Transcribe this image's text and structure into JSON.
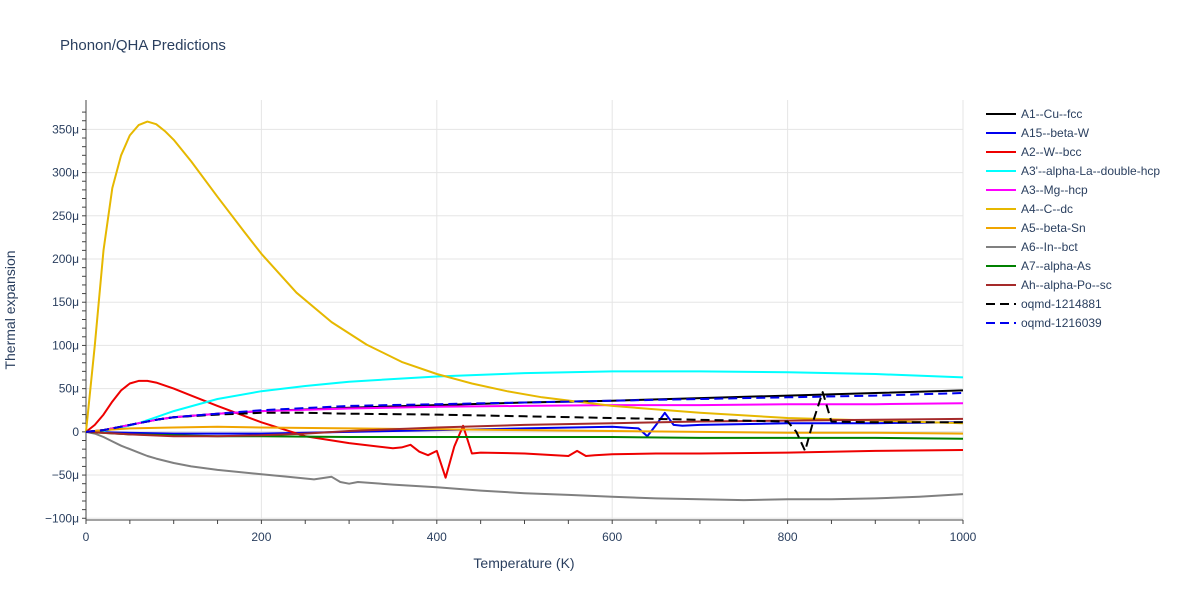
{
  "chart_data": {
    "type": "line",
    "title": "Phonon/QHA Predictions",
    "xlabel": "Temperature (K)",
    "ylabel": "Thermal expansion",
    "xlim": [
      0,
      1000
    ],
    "ylim": [
      -0.000102,
      0.000384
    ],
    "xticks": [
      0,
      200,
      400,
      600,
      800,
      1000
    ],
    "xtick_labels": [
      "0",
      "200",
      "400",
      "600",
      "800",
      "1000"
    ],
    "yticks": [
      -0.0001,
      -5e-05,
      0,
      5e-05,
      0.0001,
      0.00015,
      0.0002,
      0.00025,
      0.0003,
      0.00035
    ],
    "ytick_labels": [
      "−100μ",
      "−50μ",
      "0",
      "50μ",
      "100μ",
      "150μ",
      "200μ",
      "250μ",
      "300μ",
      "350μ"
    ],
    "grid": true,
    "legend_position": "right",
    "series": [
      {
        "name": "A1--Cu--fcc",
        "color": "#000000",
        "dash": "solid",
        "x": [
          0,
          20,
          40,
          60,
          80,
          100,
          150,
          200,
          300,
          400,
          500,
          600,
          700,
          800,
          900,
          1000
        ],
        "y": [
          0,
          2e-06,
          6e-06,
          1e-05,
          1.4e-05,
          1.7e-05,
          2.1e-05,
          2.4e-05,
          2.8e-05,
          3.1e-05,
          3.4e-05,
          3.6e-05,
          3.9e-05,
          4.2e-05,
          4.5e-05,
          4.8e-05
        ]
      },
      {
        "name": "A15--beta-W",
        "color": "#0000ee",
        "dash": "solid",
        "x": [
          0,
          100,
          200,
          300,
          400,
          500,
          600,
          630,
          640,
          650,
          660,
          670,
          680,
          700,
          750,
          800,
          900,
          1000
        ],
        "y": [
          0,
          -2e-06,
          -2e-06,
          0,
          2e-06,
          4e-06,
          6e-06,
          4e-06,
          -5e-06,
          8e-06,
          2.2e-05,
          8e-06,
          7e-06,
          8e-06,
          9e-06,
          1e-05,
          1e-05,
          1.1e-05
        ]
      },
      {
        "name": "A2--W--bcc",
        "color": "#ee0000",
        "dash": "solid",
        "x": [
          0,
          10,
          20,
          30,
          40,
          50,
          60,
          70,
          80,
          100,
          120,
          150,
          200,
          250,
          300,
          350,
          360,
          370,
          380,
          390,
          400,
          410,
          420,
          430,
          440,
          450,
          500,
          550,
          560,
          570,
          580,
          600,
          650,
          700,
          800,
          900,
          1000
        ],
        "y": [
          0,
          8e-06,
          2e-05,
          3.5e-05,
          4.8e-05,
          5.6e-05,
          5.9e-05,
          5.9e-05,
          5.7e-05,
          5e-05,
          4.2e-05,
          3e-05,
          1.1e-05,
          -5e-06,
          -1.3e-05,
          -1.9e-05,
          -1.8e-05,
          -1.5e-05,
          -2.3e-05,
          -2.7e-05,
          -2.2e-05,
          -5.3e-05,
          -1.7e-05,
          7e-06,
          -2.5e-05,
          -2.4e-05,
          -2.5e-05,
          -2.8e-05,
          -2.2e-05,
          -2.8e-05,
          -2.7e-05,
          -2.6e-05,
          -2.5e-05,
          -2.5e-05,
          -2.4e-05,
          -2.2e-05,
          -2.1e-05
        ]
      },
      {
        "name": "A3'--alpha-La--double-hcp",
        "color": "#00ffff",
        "dash": "solid",
        "x": [
          0,
          20,
          40,
          60,
          80,
          100,
          150,
          200,
          250,
          300,
          400,
          500,
          600,
          700,
          800,
          900,
          1000
        ],
        "y": [
          0,
          1e-06,
          5e-06,
          1e-05,
          1.7e-05,
          2.4e-05,
          3.8e-05,
          4.7e-05,
          5.3e-05,
          5.8e-05,
          6.4e-05,
          6.8e-05,
          7e-05,
          7e-05,
          6.9e-05,
          6.7e-05,
          6.3e-05
        ]
      },
      {
        "name": "A3--Mg--hcp",
        "color": "#ff00ff",
        "dash": "solid",
        "x": [
          0,
          20,
          40,
          60,
          80,
          100,
          150,
          200,
          300,
          400,
          500,
          600,
          700,
          800,
          900,
          1000
        ],
        "y": [
          0,
          2e-06,
          6e-06,
          1e-05,
          1.4e-05,
          1.7e-05,
          2.1e-05,
          2.4e-05,
          2.7e-05,
          2.9e-05,
          3e-05,
          3.1e-05,
          3.1e-05,
          3.2e-05,
          3.2e-05,
          3.3e-05
        ]
      },
      {
        "name": "A4--C--dc",
        "color": "#e6b800",
        "dash": "solid",
        "x": [
          0,
          10,
          20,
          30,
          40,
          50,
          60,
          70,
          80,
          90,
          100,
          120,
          150,
          180,
          200,
          240,
          280,
          320,
          360,
          400,
          440,
          480,
          520,
          560,
          600,
          700,
          800,
          900,
          1000
        ],
        "y": [
          0,
          0.0001,
          0.00021,
          0.000282,
          0.00032,
          0.000343,
          0.000355,
          0.000359,
          0.000356,
          0.000348,
          0.000338,
          0.000313,
          0.000272,
          0.000232,
          0.000206,
          0.000161,
          0.000127,
          0.000101,
          8.1e-05,
          6.7e-05,
          5.6e-05,
          4.7e-05,
          4e-05,
          3.5e-05,
          3e-05,
          2.2e-05,
          1.6e-05,
          1.3e-05,
          1e-05
        ]
      },
      {
        "name": "A5--beta-Sn",
        "color": "#f0a500",
        "dash": "solid",
        "x": [
          0,
          20,
          50,
          100,
          150,
          200,
          300,
          400,
          500,
          600,
          700,
          800,
          900,
          1000
        ],
        "y": [
          0,
          2e-06,
          4e-06,
          5e-06,
          6e-06,
          5e-06,
          4e-06,
          3e-06,
          2e-06,
          1e-06,
          0,
          -1e-06,
          -1e-06,
          -2e-06
        ]
      },
      {
        "name": "A6--In--bct",
        "color": "#808080",
        "dash": "solid",
        "x": [
          0,
          10,
          20,
          30,
          40,
          50,
          60,
          70,
          80,
          100,
          120,
          150,
          200,
          230,
          260,
          280,
          290,
          300,
          310,
          350,
          400,
          450,
          500,
          550,
          600,
          650,
          700,
          750,
          800,
          850,
          900,
          950,
          1000
        ],
        "y": [
          0,
          -2e-06,
          -6e-06,
          -1.1e-05,
          -1.6e-05,
          -2e-05,
          -2.4e-05,
          -2.8e-05,
          -3.1e-05,
          -3.6e-05,
          -4e-05,
          -4.4e-05,
          -4.9e-05,
          -5.2e-05,
          -5.5e-05,
          -5.2e-05,
          -5.8e-05,
          -6e-05,
          -5.8e-05,
          -6.1e-05,
          -6.4e-05,
          -6.8e-05,
          -7.1e-05,
          -7.3e-05,
          -7.5e-05,
          -7.7e-05,
          -7.8e-05,
          -7.9e-05,
          -7.8e-05,
          -7.8e-05,
          -7.7e-05,
          -7.5e-05,
          -7.2e-05
        ]
      },
      {
        "name": "A7--alpha-As",
        "color": "#008000",
        "dash": "solid",
        "x": [
          0,
          50,
          100,
          150,
          200,
          300,
          400,
          500,
          600,
          700,
          800,
          900,
          1000
        ],
        "y": [
          0,
          -3e-06,
          -4e-06,
          -5e-06,
          -5e-06,
          -6e-06,
          -6e-06,
          -6e-06,
          -6e-06,
          -7e-06,
          -7e-06,
          -7e-06,
          -8e-06
        ]
      },
      {
        "name": "Ah--alpha-Po--sc",
        "color": "#a52a2a",
        "dash": "solid",
        "x": [
          0,
          50,
          100,
          150,
          200,
          250,
          300,
          400,
          500,
          600,
          700,
          800,
          900,
          1000
        ],
        "y": [
          0,
          -3e-06,
          -5e-06,
          -5e-06,
          -4e-06,
          -2e-06,
          1e-06,
          5e-06,
          8e-06,
          1e-05,
          1.2e-05,
          1.3e-05,
          1.4e-05,
          1.5e-05
        ]
      },
      {
        "name": "oqmd-1214881",
        "color": "#000000",
        "dash": "dash",
        "x": [
          0,
          20,
          40,
          60,
          80,
          100,
          150,
          200,
          250,
          300,
          400,
          500,
          600,
          700,
          800,
          810,
          820,
          830,
          840,
          850,
          900,
          1000
        ],
        "y": [
          0,
          2e-06,
          6e-06,
          1e-05,
          1.4e-05,
          1.7e-05,
          2e-05,
          2.2e-05,
          2.2e-05,
          2.1e-05,
          2e-05,
          1.8e-05,
          1.6e-05,
          1.4e-05,
          1.2e-05,
          0,
          -2.2e-05,
          1.5e-05,
          4.6e-05,
          1.2e-05,
          1.1e-05,
          1.1e-05
        ]
      },
      {
        "name": "oqmd-1216039",
        "color": "#0000ee",
        "dash": "dash",
        "x": [
          0,
          20,
          40,
          60,
          80,
          100,
          150,
          200,
          300,
          400,
          500,
          600,
          700,
          800,
          900,
          1000
        ],
        "y": [
          0,
          2e-06,
          6e-06,
          1e-05,
          1.4e-05,
          1.7e-05,
          2.1e-05,
          2.5e-05,
          3e-05,
          3.2e-05,
          3.4e-05,
          3.6e-05,
          3.8e-05,
          4e-05,
          4.2e-05,
          4.5e-05
        ]
      }
    ]
  }
}
